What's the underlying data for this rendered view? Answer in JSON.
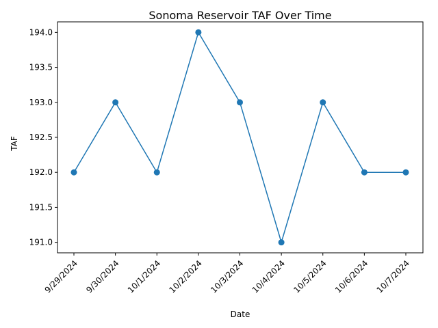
{
  "chart_data": {
    "type": "line",
    "title": "Sonoma Reservoir TAF Over Time",
    "xlabel": "Date",
    "ylabel": "TAF",
    "categories": [
      "9/29/2024",
      "9/30/2024",
      "10/1/2024",
      "10/2/2024",
      "10/3/2024",
      "10/4/2024",
      "10/5/2024",
      "10/6/2024",
      "10/7/2024"
    ],
    "series": [
      {
        "values": [
          192.0,
          193.0,
          192.0,
          194.0,
          193.0,
          191.0,
          193.0,
          192.0,
          192.0
        ],
        "color": "#1f77b4",
        "marker": "circle"
      }
    ],
    "ylim": [
      190.85,
      194.15
    ],
    "yticks": [
      "191.0",
      "191.5",
      "192.0",
      "192.5",
      "193.0",
      "193.5",
      "194.0"
    ],
    "grid": false,
    "legend": "none"
  }
}
